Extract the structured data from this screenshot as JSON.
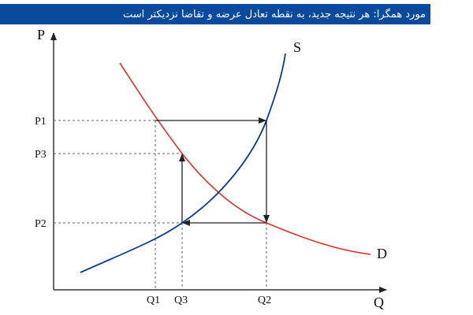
{
  "header": {
    "title": "مورد همگرا: هر نتیجه جدید، به نقطه تعادل عرضه و تقاضا نزدیکتر است"
  },
  "axes": {
    "p": "P",
    "q": "Q"
  },
  "curves": {
    "supply": "S",
    "demand": "D"
  },
  "ticks": {
    "y": [
      "P1",
      "P3",
      "P2"
    ],
    "x": [
      "Q1",
      "Q3",
      "Q2"
    ]
  }
}
